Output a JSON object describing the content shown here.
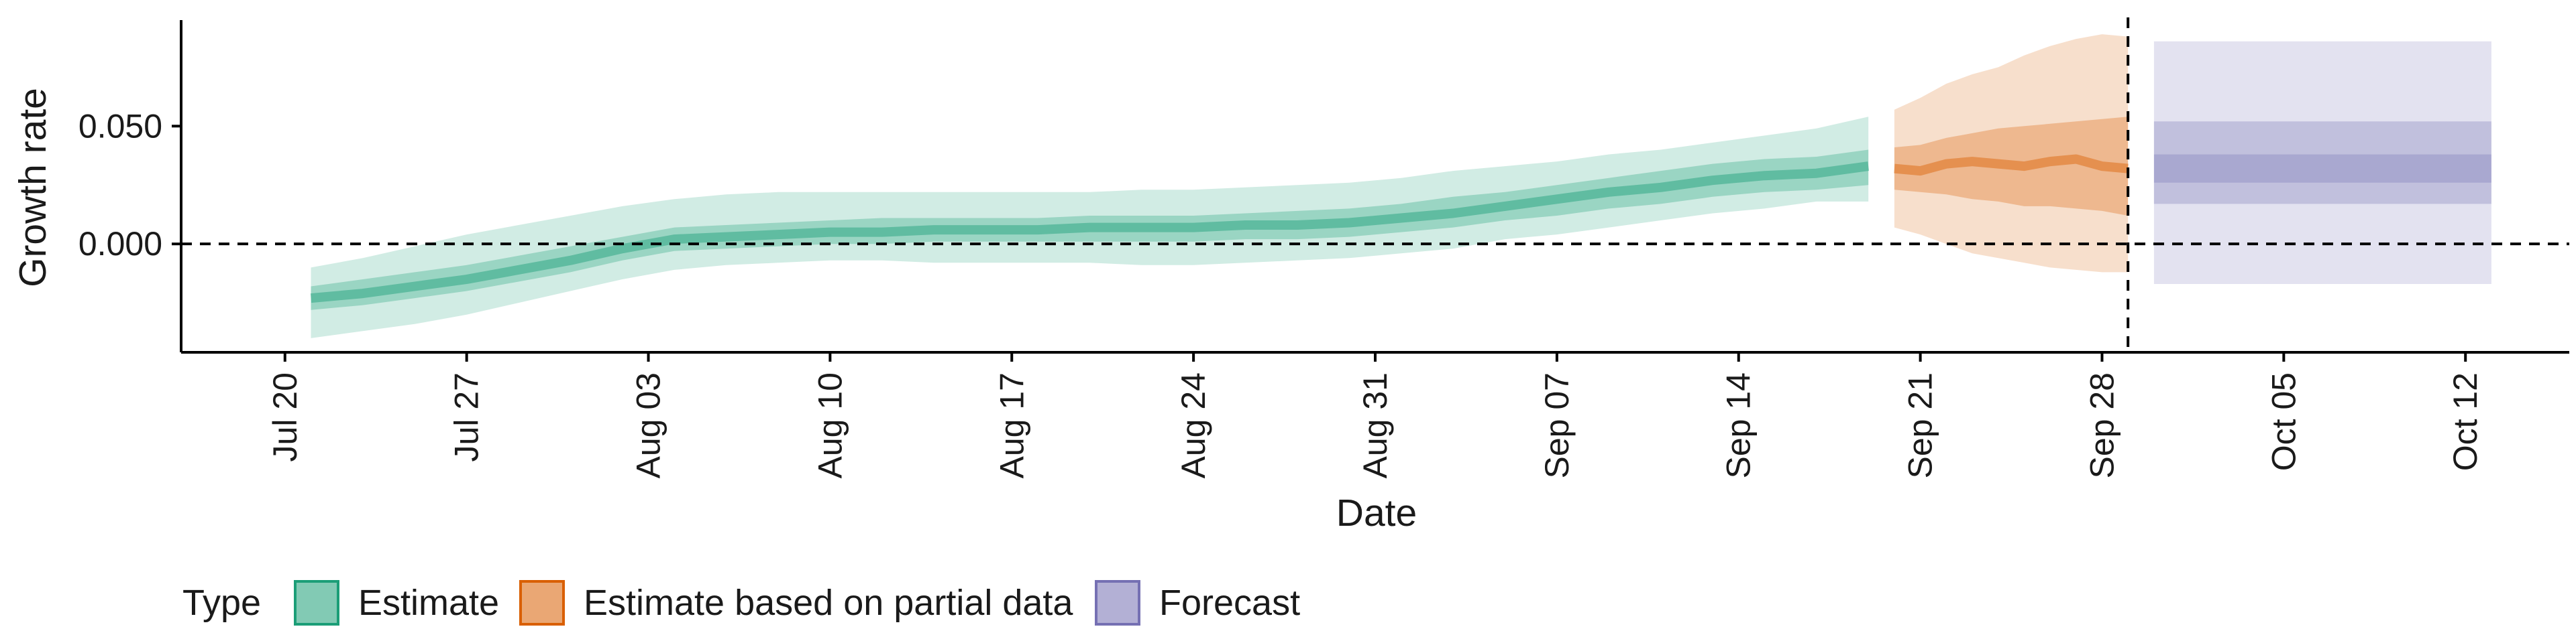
{
  "chart_data": {
    "type": "area",
    "xlabel": "Date",
    "ylabel": "Growth rate",
    "x_axis": {
      "type": "date",
      "range": [
        "2020-07-16",
        "2020-10-16"
      ],
      "ticks": [
        {
          "date": "2020-07-20",
          "label": "Jul 20"
        },
        {
          "date": "2020-07-27",
          "label": "Jul 27"
        },
        {
          "date": "2020-08-03",
          "label": "Aug 03"
        },
        {
          "date": "2020-08-10",
          "label": "Aug 10"
        },
        {
          "date": "2020-08-17",
          "label": "Aug 17"
        },
        {
          "date": "2020-08-24",
          "label": "Aug 24"
        },
        {
          "date": "2020-08-31",
          "label": "Aug 31"
        },
        {
          "date": "2020-09-07",
          "label": "Sep 07"
        },
        {
          "date": "2020-09-14",
          "label": "Sep 14"
        },
        {
          "date": "2020-09-21",
          "label": "Sep 21"
        },
        {
          "date": "2020-09-28",
          "label": "Sep 28"
        },
        {
          "date": "2020-10-05",
          "label": "Oct 05"
        },
        {
          "date": "2020-10-12",
          "label": "Oct 12"
        }
      ]
    },
    "y_axis": {
      "range": [
        -0.046,
        0.095
      ],
      "ticks": [
        {
          "value": 0.0,
          "label": "0.000"
        },
        {
          "value": 0.05,
          "label": "0.050"
        }
      ]
    },
    "reference_lines": [
      {
        "axis": "y",
        "value": 0.0,
        "style": "dashed"
      },
      {
        "axis": "x",
        "value": "2020-09-29",
        "style": "dashed"
      }
    ],
    "legend": {
      "title": "Type",
      "placement": "bottom",
      "entries": [
        {
          "name": "Estimate",
          "color": "#1b9e77"
        },
        {
          "name": "Estimate based on partial data",
          "color": "#d95f02"
        },
        {
          "name": "Forecast",
          "color": "#7570b3"
        }
      ]
    },
    "series": [
      {
        "name": "Estimate",
        "color": "#1b9e77",
        "x": [
          "2020-07-21",
          "2020-07-23",
          "2020-07-25",
          "2020-07-27",
          "2020-07-29",
          "2020-07-31",
          "2020-08-02",
          "2020-08-04",
          "2020-08-06",
          "2020-08-08",
          "2020-08-10",
          "2020-08-12",
          "2020-08-14",
          "2020-08-16",
          "2020-08-18",
          "2020-08-20",
          "2020-08-22",
          "2020-08-24",
          "2020-08-26",
          "2020-08-28",
          "2020-08-30",
          "2020-09-01",
          "2020-09-03",
          "2020-09-05",
          "2020-09-07",
          "2020-09-09",
          "2020-09-11",
          "2020-09-13",
          "2020-09-15",
          "2020-09-17",
          "2020-09-19"
        ],
        "median": [
          -0.023,
          -0.021,
          -0.018,
          -0.015,
          -0.011,
          -0.007,
          -0.002,
          0.002,
          0.003,
          0.004,
          0.005,
          0.005,
          0.006,
          0.006,
          0.006,
          0.007,
          0.007,
          0.007,
          0.008,
          0.008,
          0.009,
          0.011,
          0.013,
          0.016,
          0.019,
          0.022,
          0.024,
          0.027,
          0.029,
          0.03,
          0.033
        ],
        "lower50": [
          -0.028,
          -0.026,
          -0.023,
          -0.02,
          -0.016,
          -0.012,
          -0.007,
          -0.003,
          -0.002,
          -0.001,
          0.0,
          0.0,
          0.001,
          0.001,
          0.001,
          0.001,
          0.001,
          0.001,
          0.002,
          0.002,
          0.003,
          0.005,
          0.007,
          0.01,
          0.012,
          0.015,
          0.017,
          0.02,
          0.022,
          0.023,
          0.025
        ],
        "upper50": [
          -0.018,
          -0.015,
          -0.012,
          -0.009,
          -0.005,
          -0.001,
          0.003,
          0.007,
          0.008,
          0.009,
          0.01,
          0.011,
          0.011,
          0.011,
          0.011,
          0.012,
          0.012,
          0.012,
          0.013,
          0.014,
          0.015,
          0.017,
          0.02,
          0.022,
          0.025,
          0.028,
          0.031,
          0.034,
          0.036,
          0.037,
          0.04
        ],
        "lower90": [
          -0.04,
          -0.037,
          -0.034,
          -0.03,
          -0.025,
          -0.02,
          -0.015,
          -0.011,
          -0.009,
          -0.008,
          -0.007,
          -0.007,
          -0.008,
          -0.008,
          -0.008,
          -0.008,
          -0.009,
          -0.009,
          -0.008,
          -0.007,
          -0.006,
          -0.004,
          -0.002,
          0.002,
          0.004,
          0.007,
          0.01,
          0.013,
          0.015,
          0.018,
          0.018
        ],
        "upper90": [
          -0.01,
          -0.006,
          -0.001,
          0.004,
          0.008,
          0.012,
          0.016,
          0.019,
          0.021,
          0.022,
          0.022,
          0.022,
          0.022,
          0.022,
          0.022,
          0.022,
          0.023,
          0.023,
          0.024,
          0.025,
          0.026,
          0.028,
          0.031,
          0.033,
          0.035,
          0.038,
          0.04,
          0.043,
          0.046,
          0.049,
          0.054
        ]
      },
      {
        "name": "Estimate based on partial data",
        "color": "#d95f02",
        "x": [
          "2020-09-20",
          "2020-09-21",
          "2020-09-22",
          "2020-09-23",
          "2020-09-24",
          "2020-09-25",
          "2020-09-26",
          "2020-09-27",
          "2020-09-28",
          "2020-09-29"
        ],
        "median": [
          0.032,
          0.031,
          0.034,
          0.035,
          0.034,
          0.033,
          0.035,
          0.036,
          0.033,
          0.032
        ],
        "lower50": [
          0.023,
          0.022,
          0.021,
          0.019,
          0.018,
          0.016,
          0.016,
          0.015,
          0.014,
          0.012
        ],
        "upper50": [
          0.041,
          0.042,
          0.045,
          0.047,
          0.049,
          0.05,
          0.051,
          0.052,
          0.053,
          0.054
        ],
        "lower90": [
          0.007,
          0.004,
          0.0,
          -0.004,
          -0.006,
          -0.008,
          -0.01,
          -0.011,
          -0.012,
          -0.012
        ],
        "upper90": [
          0.057,
          0.062,
          0.068,
          0.072,
          0.075,
          0.08,
          0.084,
          0.087,
          0.089,
          0.088
        ]
      },
      {
        "name": "Forecast",
        "color": "#7570b3",
        "x": [
          "2020-09-30",
          "2020-10-13"
        ],
        "lower25": [
          0.026,
          0.026
        ],
        "upper25": [
          0.038,
          0.038
        ],
        "lower50": [
          0.017,
          0.017
        ],
        "upper50": [
          0.052,
          0.052
        ],
        "lower90": [
          -0.017,
          -0.017
        ],
        "upper90": [
          0.086,
          0.086
        ]
      }
    ]
  }
}
